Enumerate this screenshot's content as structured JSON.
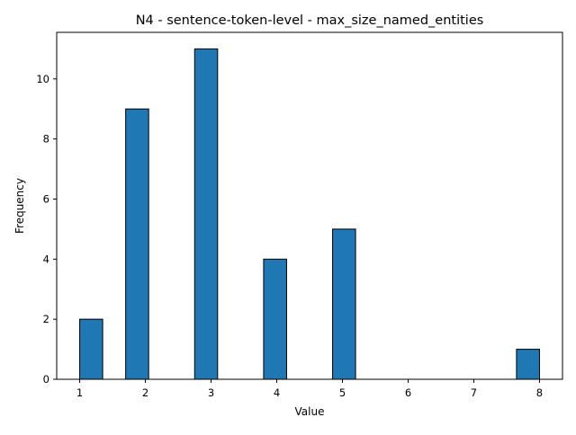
{
  "chart_data": {
    "type": "bar",
    "title": "N4 - sentence-token-level - max_size_named_entities",
    "xlabel": "Value",
    "ylabel": "Frequency",
    "xlim": [
      0.65,
      8.35
    ],
    "ylim": [
      0,
      11.55
    ],
    "x_ticks": [
      1,
      2,
      3,
      4,
      5,
      6,
      7,
      8
    ],
    "y_ticks": [
      0,
      2,
      4,
      6,
      8,
      10
    ],
    "bins": [
      {
        "x_start": 1.0,
        "x_end": 1.35,
        "value": 2
      },
      {
        "x_start": 1.7,
        "x_end": 2.05,
        "value": 9
      },
      {
        "x_start": 2.75,
        "x_end": 3.1,
        "value": 11
      },
      {
        "x_start": 3.8,
        "x_end": 4.15,
        "value": 4
      },
      {
        "x_start": 4.85,
        "x_end": 5.2,
        "value": 5
      },
      {
        "x_start": 7.65,
        "x_end": 8.0,
        "value": 1
      }
    ],
    "bar_color": "#1f77b4",
    "edge_color": "#000000",
    "grid": false,
    "legend": "none"
  }
}
